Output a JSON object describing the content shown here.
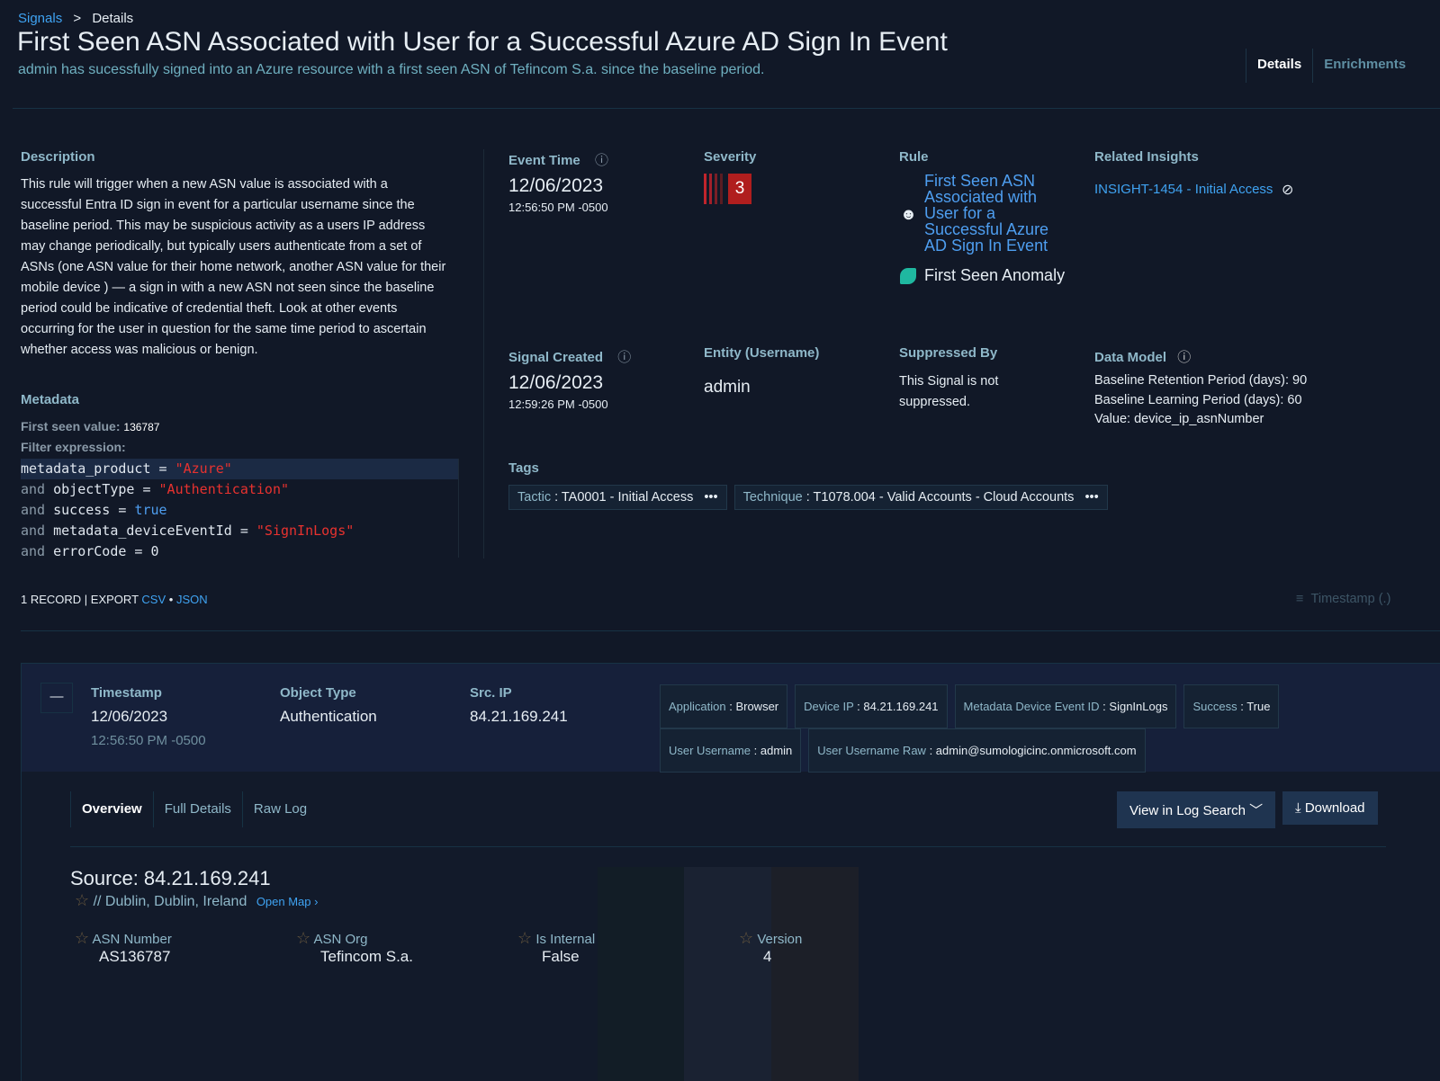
{
  "breadcrumb": {
    "parent": "Signals",
    "sep": ">",
    "current": "Details"
  },
  "title": "First Seen ASN Associated with User for a Successful Azure AD Sign In Event",
  "subtitle": "admin has sucessfully signed into an Azure resource with a first seen ASN of Tefincom S.a. since the baseline period.",
  "tabs": [
    "Details",
    "Enrichments"
  ],
  "description": {
    "label": "Description",
    "text": "This rule will trigger when a new ASN value is associated with a successful Entra ID sign in event for a particular username since the baseline period. This may be suspicious activity as a users IP address may change periodically, but typically users authenticate from a set of ASNs (one ASN value for their home network, another ASN value for their mobile device ) — a sign in with a new ASN not seen since the baseline period could be indicative of credential theft. Look at other events occurring for the user in question for the same time period to ascertain whether access was malicious or benign."
  },
  "metadata": {
    "label": "Metadata",
    "first_seen_label": "First seen value:",
    "first_seen_value": "136787",
    "filter_label": "Filter expression:",
    "code": [
      [
        "",
        "metadata_product = ",
        "\"Azure\""
      ],
      [
        "and ",
        "objectType = ",
        "\"Authentication\""
      ],
      [
        "and ",
        "success = ",
        "true"
      ],
      [
        "and ",
        "metadata_deviceEventId = ",
        "\"SignInLogs\""
      ],
      [
        "and ",
        "errorCode = ",
        "0"
      ]
    ]
  },
  "event_time": {
    "label": "Event Time",
    "date": "12/06/2023",
    "time": "12:56:50 PM -0500"
  },
  "severity": {
    "label": "Severity",
    "value": "3"
  },
  "rule": {
    "label": "Rule",
    "name": "First Seen ASN Associated with User for a Successful Azure AD Sign In Event",
    "type": "First Seen Anomaly"
  },
  "related": {
    "label": "Related Insights",
    "insight": "INSIGHT-1454 - Initial Access"
  },
  "signal_created": {
    "label": "Signal Created",
    "date": "12/06/2023",
    "time": "12:59:26 PM -0500"
  },
  "entity": {
    "label": "Entity (Username)",
    "value": "admin"
  },
  "suppressed": {
    "label": "Suppressed By",
    "value": "This Signal is not suppressed."
  },
  "data_model": {
    "label": "Data Model",
    "lines": [
      "Baseline Retention Period (days): 90",
      "Baseline Learning Period (days): 60",
      "Value: device_ip_asnNumber"
    ]
  },
  "tags": {
    "label": "Tags",
    "items": [
      {
        "k": "Tactic",
        "v": "TA0001 - Initial Access"
      },
      {
        "k": "Technique",
        "v": "T1078.004 - Valid Accounts - Cloud Accounts"
      }
    ]
  },
  "records": {
    "count": "1 RECORD",
    "export": "EXPORT",
    "csv": "CSV",
    "dot": "•",
    "json": "JSON",
    "sort": "Timestamp (.)"
  },
  "record": {
    "cols": [
      {
        "label": "Timestamp",
        "value": "12/06/2023",
        "sub": "12:56:50 PM -0500"
      },
      {
        "label": "Object Type",
        "value": "Authentication"
      },
      {
        "label": "Src. IP",
        "value": "84.21.169.241"
      }
    ],
    "chips": [
      {
        "k": "Application",
        "v": "Browser"
      },
      {
        "k": "Device IP",
        "v": "84.21.169.241"
      },
      {
        "k": "Metadata Device Event ID",
        "v": "SignInLogs"
      },
      {
        "k": "Success",
        "v": "True"
      },
      {
        "k": "User Username",
        "v": "admin"
      },
      {
        "k": "User Username Raw",
        "v": "admin@sumologicinc.onmicrosoft.com"
      }
    ]
  },
  "subtabs": [
    "Overview",
    "Full Details",
    "Raw Log"
  ],
  "buttons": {
    "log_search": "View in Log Search",
    "download": "Download"
  },
  "source": {
    "title": "Source: 84.21.169.241",
    "location": "// Dublin, Dublin, Ireland",
    "open_map": "Open Map",
    "fields": [
      {
        "label": "ASN Number",
        "value": "AS136787"
      },
      {
        "label": "ASN Org",
        "value": "Tefincom S.a."
      },
      {
        "label": "Is Internal",
        "value": "False"
      },
      {
        "label": "Version",
        "value": "4"
      }
    ]
  }
}
